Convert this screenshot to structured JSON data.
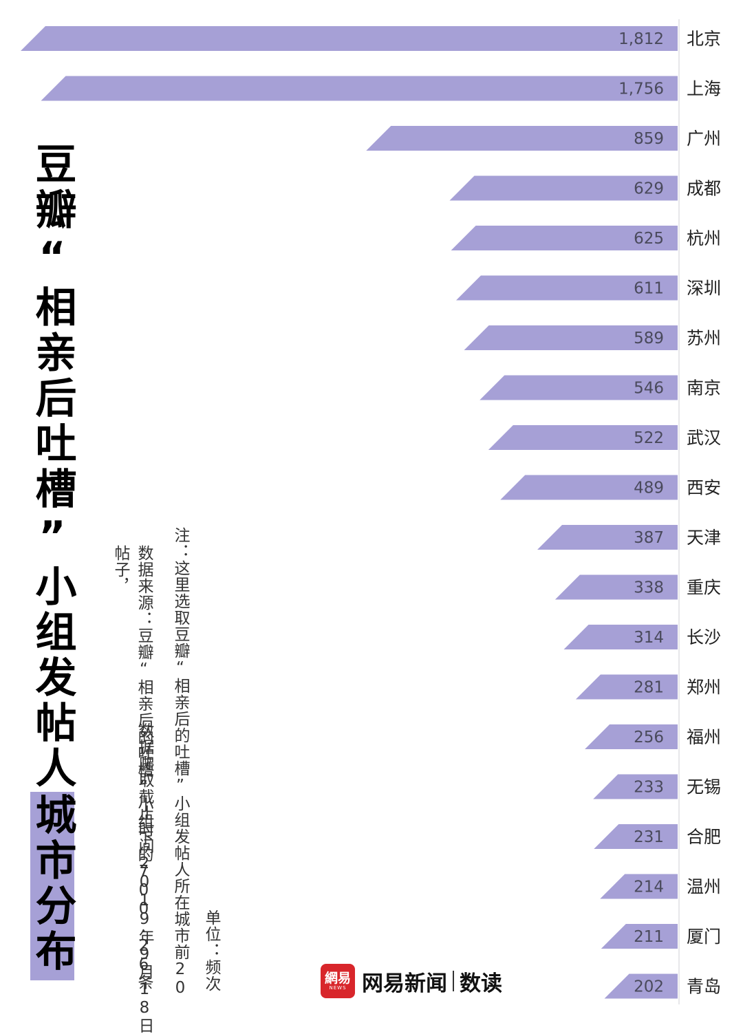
{
  "title": {
    "main": "豆瓣“相亲后吐槽”小组发帖人",
    "highlight": "城市分布"
  },
  "notes": {
    "source": "数据来源：豆瓣“相亲后的吐槽”小组下的700.26条帖子，",
    "cutoff": "数据爬取截止时间2019年9月18日",
    "main": "注：这里选取豆瓣“相亲后的吐槽”小组发帖人所在城市前20",
    "unit": "单位：频次"
  },
  "logo": {
    "badge": "網易",
    "badge_sub": "NEWS",
    "name": "网易新闻",
    "sub": "数读"
  },
  "colors": {
    "bar": "#a6a0d6",
    "logo": "#d8262b"
  },
  "chart_data": {
    "type": "bar",
    "orientation": "horizontal",
    "bar_direction": "right-to-left",
    "categories": [
      "北京",
      "上海",
      "广州",
      "成都",
      "杭州",
      "深圳",
      "苏州",
      "南京",
      "武汉",
      "西安",
      "天津",
      "重庆",
      "长沙",
      "郑州",
      "福州",
      "无锡",
      "合肥",
      "温州",
      "厦门",
      "青岛"
    ],
    "values": [
      1812,
      1756,
      859,
      629,
      625,
      611,
      589,
      546,
      522,
      489,
      387,
      338,
      314,
      281,
      256,
      233,
      231,
      214,
      211,
      202
    ],
    "value_labels": [
      "1,812",
      "1,756",
      "859",
      "629",
      "625",
      "611",
      "589",
      "546",
      "522",
      "489",
      "387",
      "338",
      "314",
      "281",
      "256",
      "233",
      "231",
      "214",
      "211",
      "202"
    ],
    "title": "豆瓣“相亲后吐槽”小组发帖人城市分布",
    "unit": "单位：频次",
    "grid": false,
    "legend": "none"
  }
}
